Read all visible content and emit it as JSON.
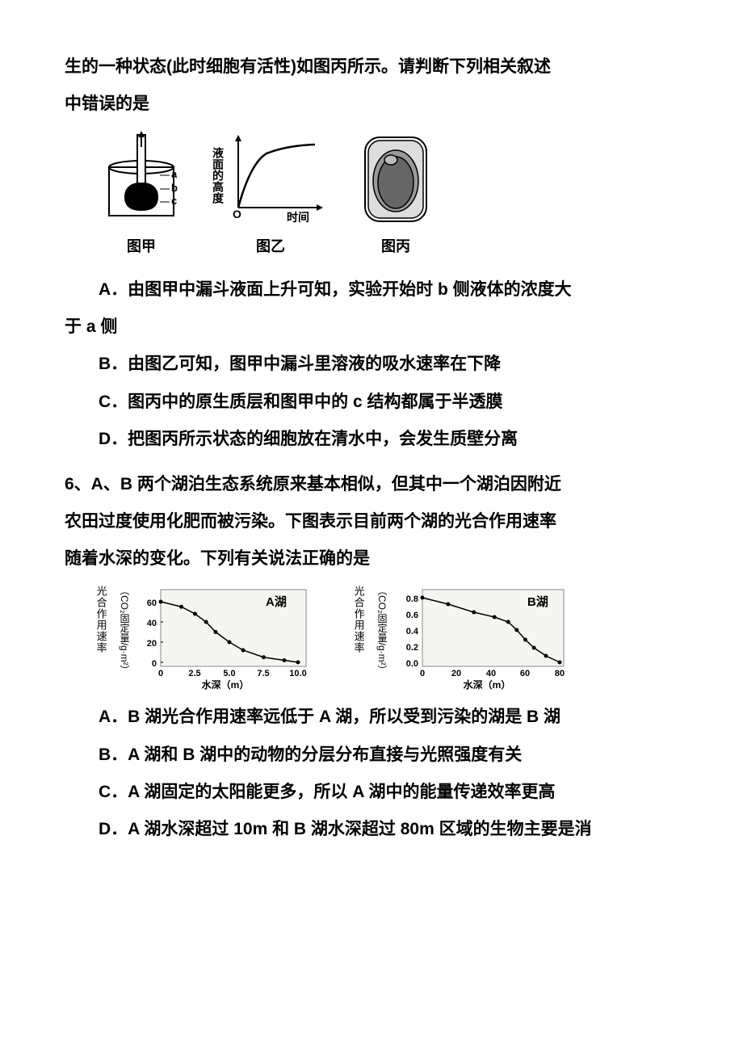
{
  "q5": {
    "intro1": "生的一种状态(此时细胞有活性)如图丙所示。请判断下列相关叙述",
    "intro2": "中错误的是",
    "fig1_label": "图甲",
    "fig2_label": "图乙",
    "fig3_label": "图丙",
    "fig2_yaxis": "液面的高度",
    "fig2_xaxis": "时间",
    "fig1_a": "a",
    "fig1_b": "b",
    "fig1_c": "c",
    "optA": "A．由图甲中漏斗液面上升可知，实验开始时 b 侧液体的浓度大",
    "optA2": "于 a 侧",
    "optB": "B．由图乙可知，图甲中漏斗里溶液的吸水速率在下降",
    "optC": "C．图丙中的原生质层和图甲中的 c 结构都属于半透膜",
    "optD": "D．把图丙所示状态的细胞放在清水中，会发生质壁分离"
  },
  "q6": {
    "intro1": "6、A、B 两个湖泊生态系统原来基本相似，但其中一个湖泊因附近",
    "intro2": "农田过度使用化肥而被污染。下图表示目前两个湖的光合作用速率",
    "intro3": "随着水深的变化。下列有关说法正确的是",
    "chartA": {
      "title": "A湖",
      "vlabel": "光合作用速率",
      "ylabel": "（CO₂固定量/g·m²）",
      "xlabel": "水深（m）",
      "yticks": [
        "0",
        "20",
        "40",
        "60"
      ],
      "xticks": [
        "0",
        "2.5",
        "5.0",
        "7.5",
        "10.0"
      ],
      "points": [
        [
          0,
          60
        ],
        [
          1.5,
          55
        ],
        [
          2.5,
          48
        ],
        [
          3.3,
          40
        ],
        [
          4.0,
          30
        ],
        [
          5.0,
          20
        ],
        [
          6.0,
          12
        ],
        [
          7.5,
          5
        ],
        [
          9.0,
          2
        ],
        [
          10.0,
          0
        ]
      ]
    },
    "chartB": {
      "title": "B湖",
      "vlabel": "光合作用速率",
      "ylabel": "（CO₂固定量/g·m²）",
      "xlabel": "水深（m）",
      "yticks": [
        "0.0",
        "0.2",
        "0.4",
        "0.6",
        "0.8"
      ],
      "xticks": [
        "0",
        "20",
        "40",
        "60",
        "80"
      ],
      "points": [
        [
          0,
          0.8
        ],
        [
          15,
          0.72
        ],
        [
          30,
          0.62
        ],
        [
          42,
          0.56
        ],
        [
          50,
          0.5
        ],
        [
          55,
          0.4
        ],
        [
          60,
          0.28
        ],
        [
          65,
          0.18
        ],
        [
          72,
          0.08
        ],
        [
          80,
          0.0
        ]
      ]
    },
    "optA": "A．B 湖光合作用速率远低于 A 湖，所以受到污染的湖是 B 湖",
    "optB": "B．A 湖和 B 湖中的动物的分层分布直接与光照强度有关",
    "optC": "C．A 湖固定的太阳能更多，所以 A 湖中的能量传递效率更高",
    "optD": "D．A 湖水深超过 10m 和 B 湖水深超过 80m 区域的生物主要是消"
  },
  "colors": {
    "stroke": "#000000",
    "fill_gray": "#808080",
    "fill_light": "#cccccc",
    "fill_dark": "#404040",
    "bg": "#ffffff",
    "chart_bg": "#f5f5f2"
  }
}
